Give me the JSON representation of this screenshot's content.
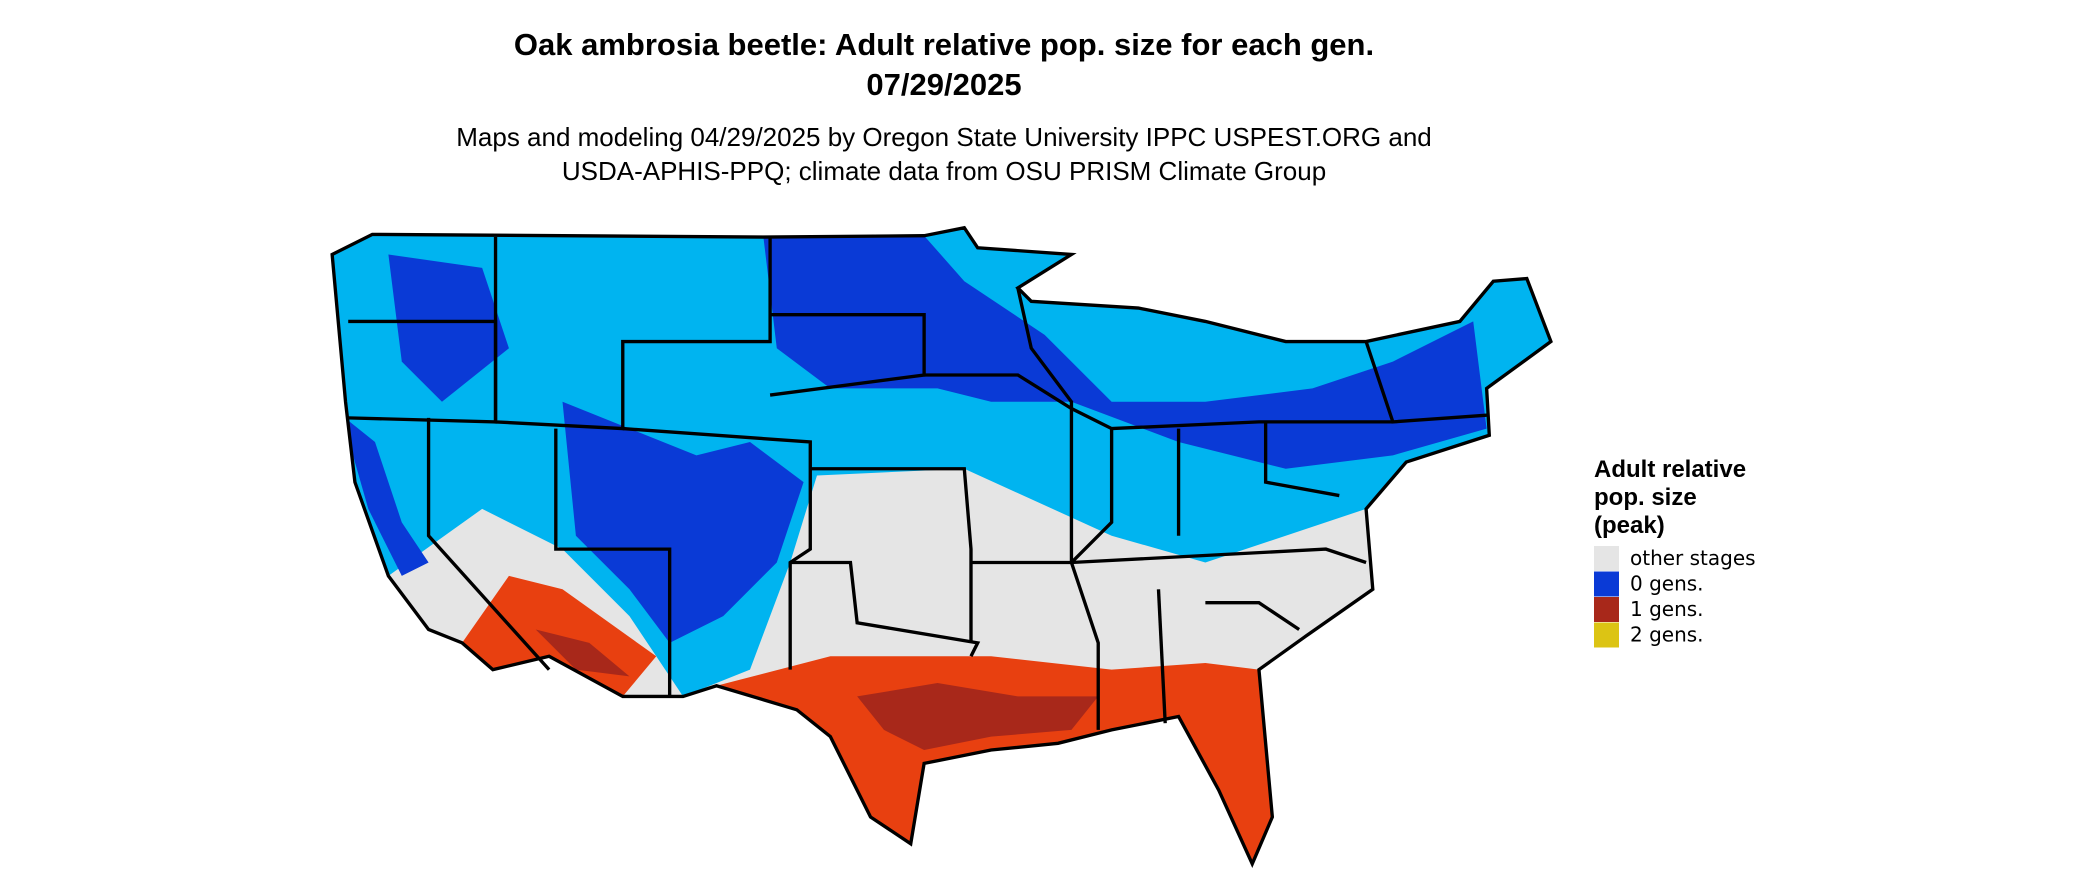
{
  "header": {
    "title": "Oak ambrosia beetle: Adult relative pop. size for each gen.",
    "date": "07/29/2025",
    "subtitle_lines": [
      "Maps and modeling 04/29/2025 by Oregon State University IPPC USPEST.ORG and",
      "USDA-APHIS-PPQ; climate data from OSU PRISM Climate Group"
    ]
  },
  "legend": {
    "title_lines": [
      "Adult relative",
      "pop. size",
      "(peak)"
    ],
    "items": [
      {
        "label": "other stages",
        "color": "#e5e5e5"
      },
      {
        "label": "0 gens.",
        "color": "#0a3ad6"
      },
      {
        "label": "1 gens.",
        "color": "#a8281a"
      },
      {
        "label": "2 gens.",
        "color": "#dcc414"
      }
    ]
  }
}
